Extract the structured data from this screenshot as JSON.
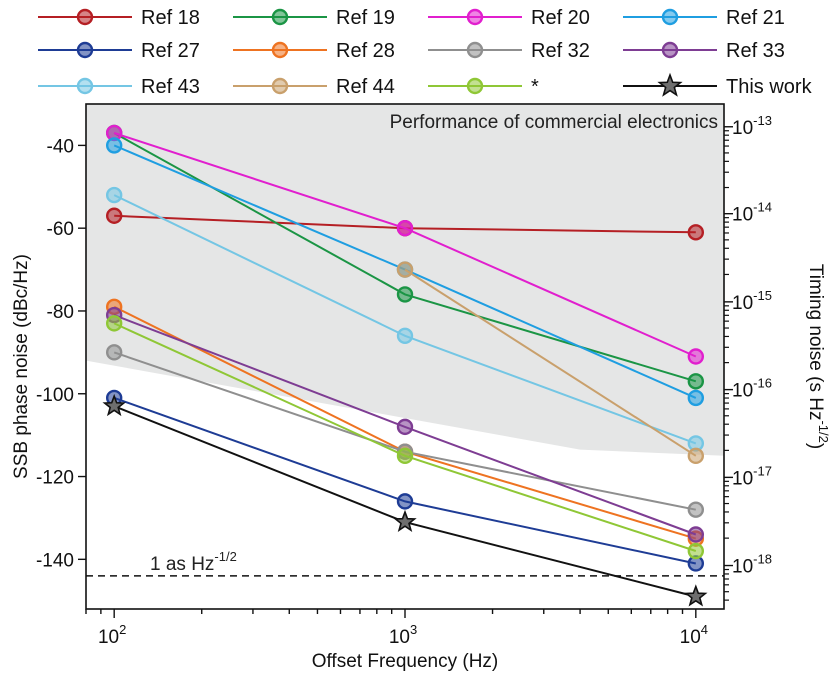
{
  "chart_data": {
    "type": "line",
    "xscale": "log",
    "x": [
      100,
      1000,
      10000
    ],
    "xlim": [
      80,
      12500
    ],
    "ylim": [
      -152,
      -30
    ],
    "xlabel": "Offset Frequency (Hz)",
    "ylabel": "SSB phase noise (dBc/Hz)",
    "y2label_main": "Timing noise (s Hz",
    "y2label_sup": "-1/2",
    "y2label_close": ")",
    "x_ticks": [
      {
        "value": 100,
        "base": "10",
        "exp": "2"
      },
      {
        "value": 1000,
        "base": "10",
        "exp": "3"
      },
      {
        "value": 10000,
        "base": "10",
        "exp": "4"
      }
    ],
    "y_ticks": [
      -40,
      -60,
      -80,
      -100,
      -120,
      -140
    ],
    "y2_ticks": [
      {
        "y": -35.5,
        "base": "10",
        "exp": "-13"
      },
      {
        "y": -56.5,
        "base": "10",
        "exp": "-14"
      },
      {
        "y": -77.8,
        "base": "10",
        "exp": "-15"
      },
      {
        "y": -99.0,
        "base": "10",
        "exp": "-16"
      },
      {
        "y": -120.2,
        "base": "10",
        "exp": "-17"
      },
      {
        "y": -141.5,
        "base": "10",
        "exp": "-18"
      }
    ],
    "shaded_region": {
      "label": "Performance of commercial electronics",
      "color": "#e5e6e6",
      "lower_boundary": [
        [
          80,
          -92
        ],
        [
          4000,
          -113.5
        ],
        [
          12500,
          -115
        ]
      ]
    },
    "reference_line": {
      "y": -144,
      "label_main": "1 as Hz",
      "label_sup": "-1/2",
      "style": "dashed"
    },
    "series": [
      {
        "name": "Ref 18",
        "color": "#b51f24",
        "marker": "circle",
        "x": [
          100,
          1000,
          10000
        ],
        "values": [
          -57,
          -60,
          -61
        ]
      },
      {
        "name": "Ref 19",
        "color": "#1b9545",
        "marker": "circle",
        "x": [
          100,
          1000,
          10000
        ],
        "values": [
          -37,
          -76,
          -97
        ]
      },
      {
        "name": "Ref 20",
        "color": "#e11fce",
        "marker": "circle",
        "x": [
          100,
          1000,
          10000
        ],
        "values": [
          -37,
          -60,
          -91
        ]
      },
      {
        "name": "Ref 21",
        "color": "#1f9ee1",
        "marker": "circle",
        "x": [
          100,
          1000,
          10000
        ],
        "values": [
          -40,
          -70,
          -101
        ]
      },
      {
        "name": "Ref 27",
        "color": "#1e3c95",
        "marker": "circle",
        "x": [
          100,
          1000,
          10000
        ],
        "values": [
          -101,
          -126,
          -141
        ]
      },
      {
        "name": "Ref 28",
        "color": "#ee7321",
        "marker": "circle",
        "x": [
          100,
          1000,
          10000
        ],
        "values": [
          -79,
          -114,
          -135
        ]
      },
      {
        "name": "Ref 32",
        "color": "#8f8f8f",
        "marker": "circle",
        "x": [
          100,
          1000,
          10000
        ],
        "values": [
          -90,
          -114,
          -128
        ]
      },
      {
        "name": "Ref 33",
        "color": "#7e3d93",
        "marker": "circle",
        "x": [
          100,
          1000,
          10000
        ],
        "values": [
          -81,
          -108,
          -134
        ]
      },
      {
        "name": "Ref 43",
        "color": "#74c6e4",
        "marker": "circle",
        "x": [
          100,
          1000,
          10000
        ],
        "values": [
          -52,
          -86,
          -112
        ]
      },
      {
        "name": "Ref 44",
        "color": "#c9a06c",
        "marker": "circle",
        "x": [
          1000,
          10000
        ],
        "values": [
          -70,
          -115
        ]
      },
      {
        "name": "*",
        "color": "#8fc736",
        "marker": "circle",
        "x": [
          100,
          1000,
          10000
        ],
        "values": [
          -83,
          -115,
          -138
        ]
      },
      {
        "name": "This work",
        "color": "#111111",
        "marker": "star",
        "x": [
          100,
          1000,
          10000
        ],
        "values": [
          -103,
          -131,
          -149
        ]
      }
    ]
  }
}
